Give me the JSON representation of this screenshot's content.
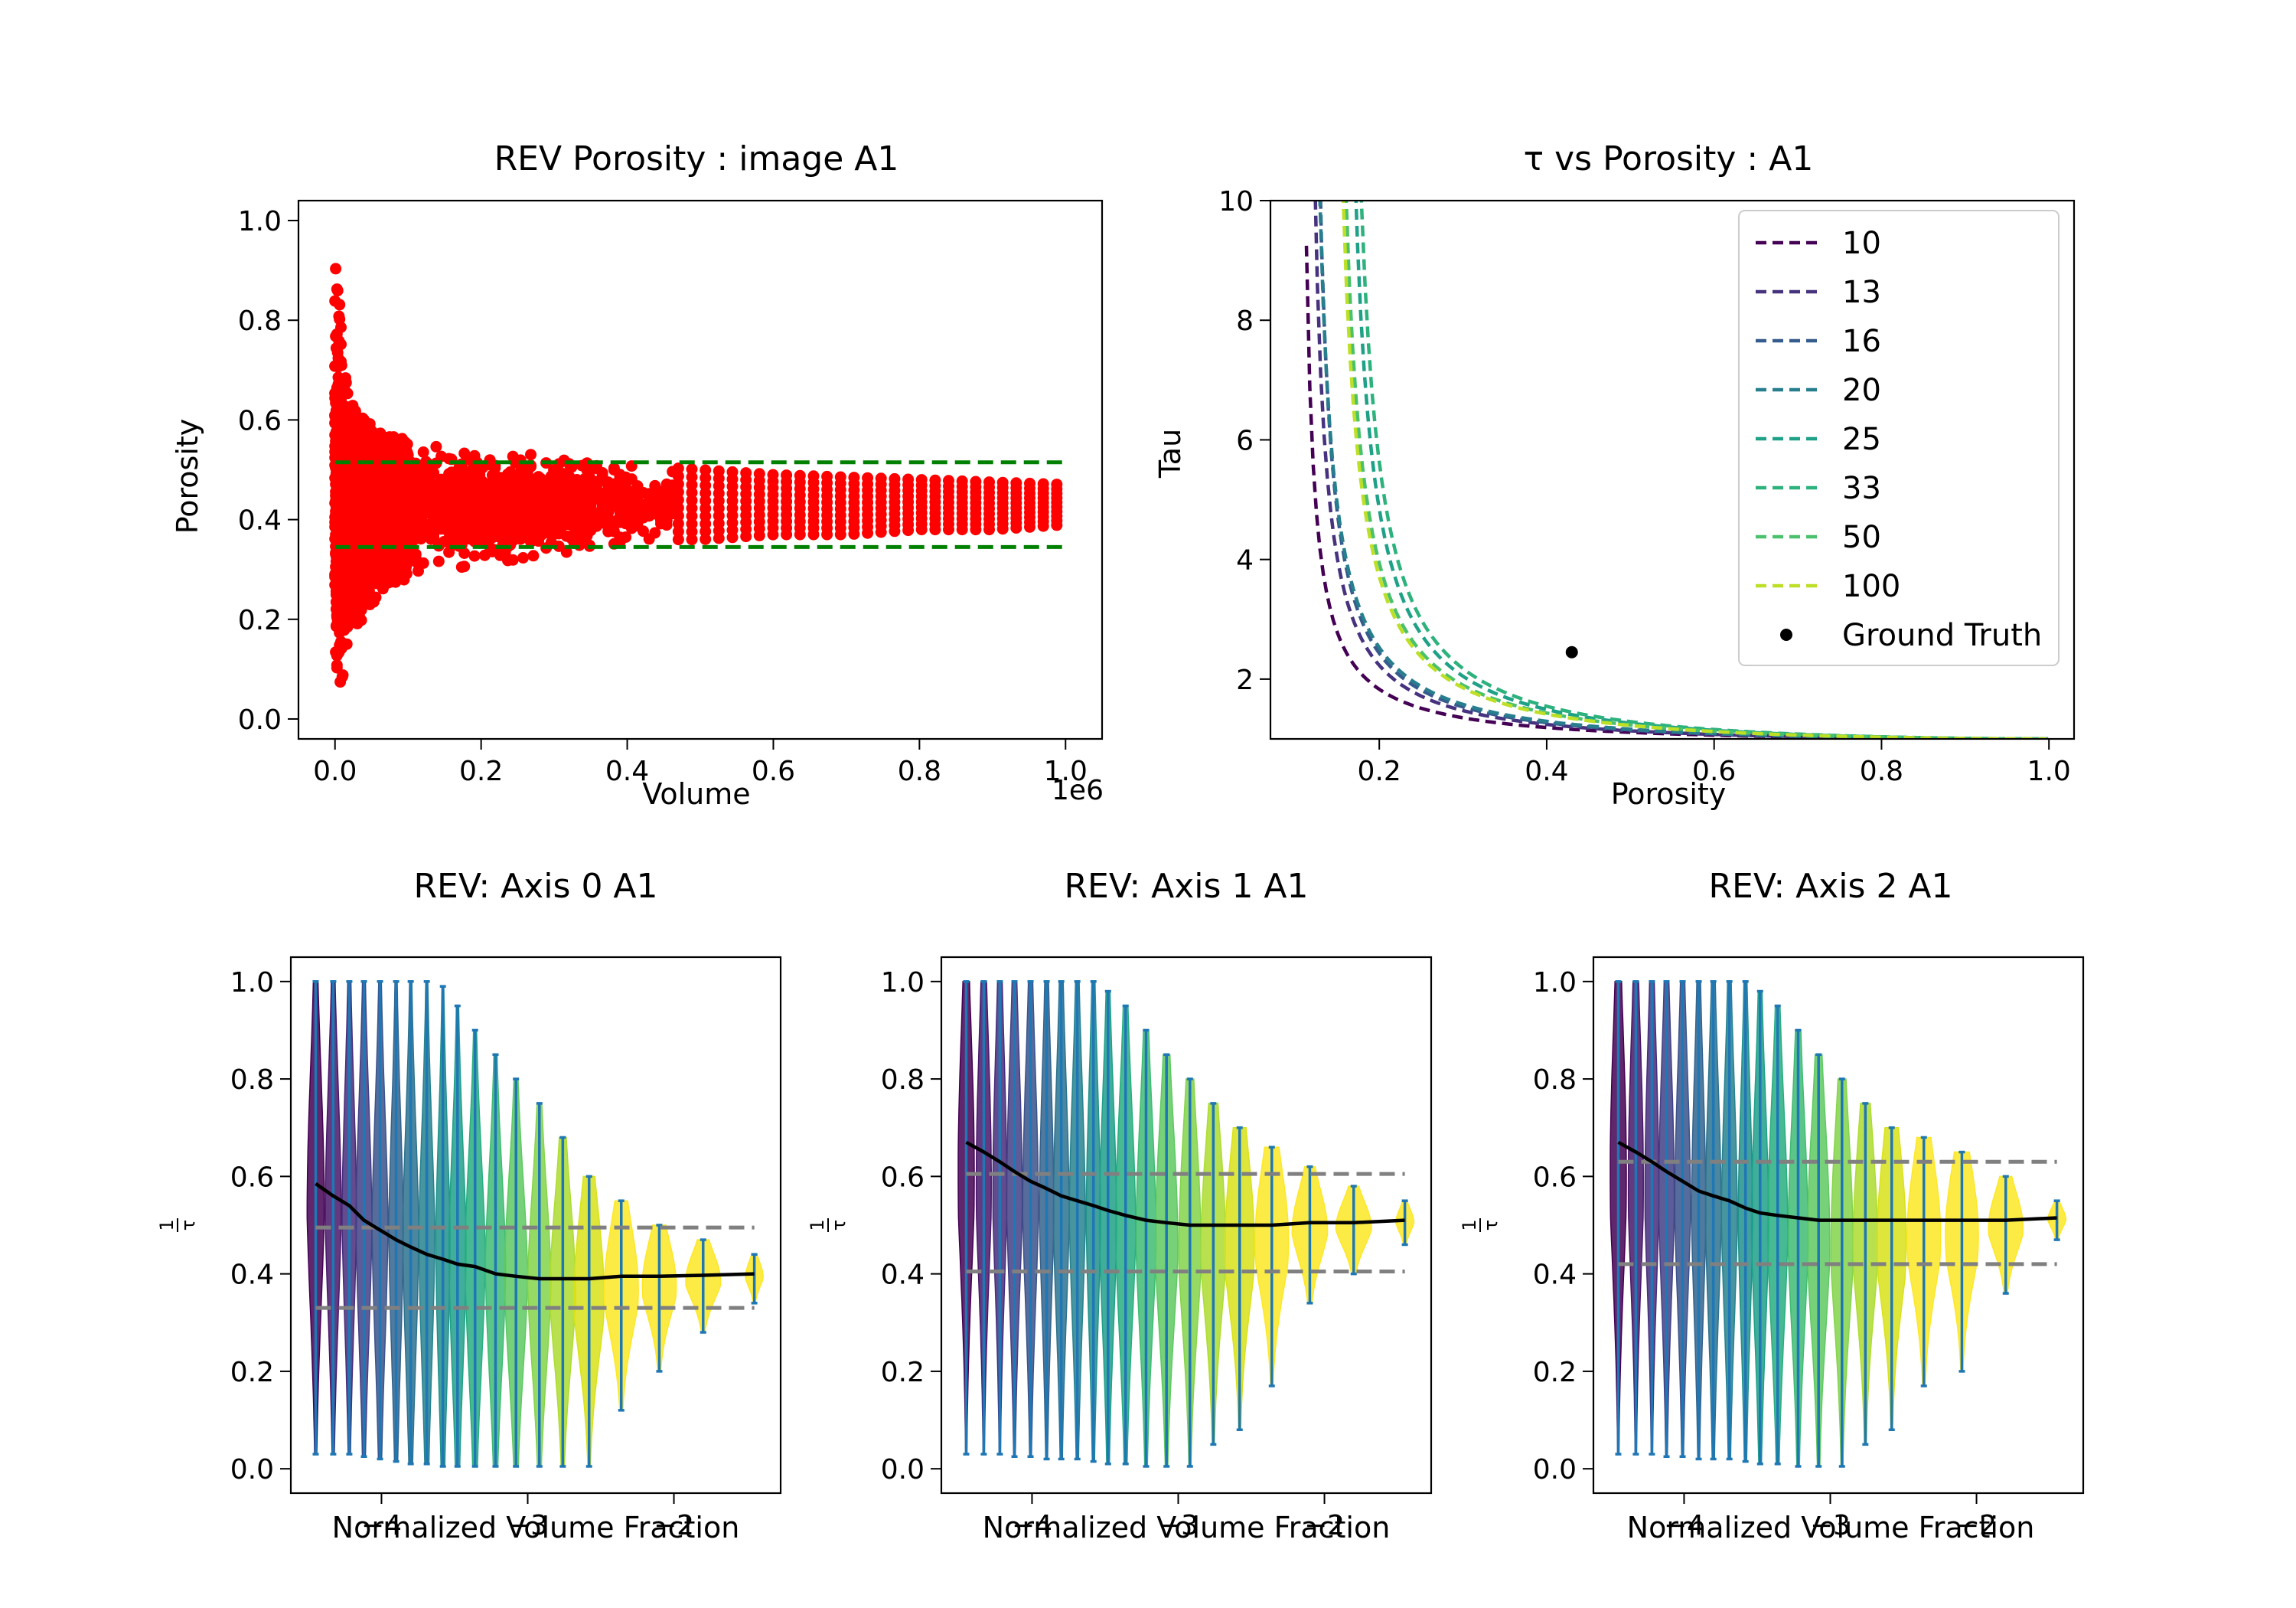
{
  "chart_data": [
    {
      "id": "rev-porosity",
      "type": "scatter",
      "title": "REV Porosity : image A1",
      "xlabel": "Volume",
      "ylabel": "Porosity",
      "x_offset_label": "1e6",
      "xlim": [
        -0.05,
        1.05
      ],
      "ylim": [
        -0.04,
        1.04
      ],
      "xticks": [
        0.0,
        0.2,
        0.4,
        0.6,
        0.8,
        1.0
      ],
      "xtick_labels": [
        "0.0",
        "0.2",
        "0.4",
        "0.6",
        "0.8",
        "1.0"
      ],
      "yticks": [
        0.0,
        0.2,
        0.4,
        0.6,
        0.8,
        1.0
      ],
      "ytick_labels": [
        "0.0",
        "0.2",
        "0.4",
        "0.6",
        "0.8",
        "1.0"
      ],
      "marker_color": "#ff0000",
      "hlines": [
        {
          "y": 0.515,
          "color": "#008000",
          "style": "dashed"
        },
        {
          "y": 0.345,
          "color": "#008000",
          "style": "dashed"
        }
      ],
      "spread": {
        "center": 0.43,
        "volumes": [
          0.0,
          0.003,
          0.006,
          0.01,
          0.015,
          0.02,
          0.03,
          0.04,
          0.05,
          0.07,
          0.1,
          0.15,
          0.2,
          0.25,
          0.3,
          0.35,
          0.4,
          0.45,
          0.5,
          0.6,
          0.7,
          0.8,
          0.9,
          1.0
        ],
        "low": [
          0.0,
          0.02,
          0.05,
          0.08,
          0.11,
          0.14,
          0.18,
          0.21,
          0.23,
          0.26,
          0.28,
          0.3,
          0.31,
          0.32,
          0.33,
          0.34,
          0.35,
          0.36,
          0.36,
          0.37,
          0.37,
          0.38,
          0.38,
          0.39
        ],
        "high": [
          0.98,
          0.9,
          0.84,
          0.78,
          0.72,
          0.68,
          0.62,
          0.6,
          0.59,
          0.57,
          0.56,
          0.55,
          0.54,
          0.535,
          0.53,
          0.52,
          0.51,
          0.505,
          0.5,
          0.49,
          0.485,
          0.48,
          0.475,
          0.47
        ]
      }
    },
    {
      "id": "tau-vs-porosity",
      "type": "line",
      "title": "τ vs Porosity : A1",
      "xlabel": "Porosity",
      "ylabel": "Tau",
      "xlim": [
        0.07,
        1.03
      ],
      "ylim": [
        1.0,
        10.0
      ],
      "xticks": [
        0.2,
        0.4,
        0.6,
        0.8,
        1.0
      ],
      "xtick_labels": [
        "0.2",
        "0.4",
        "0.6",
        "0.8",
        "1.0"
      ],
      "yticks": [
        2,
        4,
        6,
        8,
        10
      ],
      "ytick_labels": [
        "2",
        "4",
        "6",
        "8",
        "10"
      ],
      "legend_position": "upper-right",
      "series": [
        {
          "name": "10",
          "color": "#440154",
          "c": 1.8,
          "k": 0.9,
          "p0": 0.11
        },
        {
          "name": "13",
          "color": "#46327e",
          "c": 2.0,
          "k": 1.0,
          "p0": 0.115
        },
        {
          "name": "16",
          "color": "#365c8d",
          "c": 2.2,
          "k": 1.0,
          "p0": 0.12
        },
        {
          "name": "20",
          "color": "#277f8e",
          "c": 2.4,
          "k": 1.0,
          "p0": 0.118
        },
        {
          "name": "25",
          "color": "#1fa187",
          "c": 3.5,
          "k": 1.0,
          "p0": 0.155
        },
        {
          "name": "33",
          "color": "#2db27d",
          "c": 3.8,
          "k": 1.0,
          "p0": 0.16
        },
        {
          "name": "50",
          "color": "#4ac16d",
          "c": 3.2,
          "k": 1.0,
          "p0": 0.145
        },
        {
          "name": "100",
          "color": "#bddf26",
          "c": 3.1,
          "k": 1.0,
          "p0": 0.142
        }
      ],
      "ground_truth": {
        "name": "Ground Truth",
        "x": 0.43,
        "y": 2.45,
        "color": "#000000"
      }
    },
    {
      "id": "rev-axis-0",
      "type": "violin",
      "title": "REV: Axis 0 A1",
      "xlabel": "Normalized Volume Fraction",
      "ylabel": "1/τ",
      "xlim": [
        -4.62,
        -1.27
      ],
      "ylim": [
        -0.05,
        1.05
      ],
      "xticks": [
        -4,
        -3,
        -2
      ],
      "xtick_labels": [
        "−4",
        "−3",
        "−2"
      ],
      "yticks": [
        0.0,
        0.2,
        0.4,
        0.6,
        0.8,
        1.0
      ],
      "ytick_labels": [
        "0.0",
        "0.2",
        "0.4",
        "0.6",
        "0.8",
        "1.0"
      ],
      "x": [
        -4.45,
        -4.33,
        -4.22,
        -4.12,
        -4.01,
        -3.9,
        -3.8,
        -3.69,
        -3.58,
        -3.48,
        -3.36,
        -3.22,
        -3.08,
        -2.92,
        -2.76,
        -2.58,
        -2.36,
        -2.1,
        -1.8,
        -1.45
      ],
      "median": [
        0.585,
        0.56,
        0.54,
        0.51,
        0.49,
        0.47,
        0.455,
        0.44,
        0.43,
        0.42,
        0.415,
        0.4,
        0.395,
        0.39,
        0.39,
        0.39,
        0.395,
        0.395,
        0.397,
        0.4
      ],
      "max": [
        1.0,
        1.0,
        1.0,
        1.0,
        1.0,
        1.0,
        1.0,
        1.0,
        0.99,
        0.95,
        0.9,
        0.85,
        0.8,
        0.75,
        0.68,
        0.6,
        0.55,
        0.5,
        0.47,
        0.44
      ],
      "min": [
        0.03,
        0.03,
        0.03,
        0.025,
        0.02,
        0.015,
        0.01,
        0.01,
        0.005,
        0.005,
        0.005,
        0.005,
        0.005,
        0.005,
        0.005,
        0.005,
        0.12,
        0.2,
        0.28,
        0.34
      ],
      "hlines": [
        0.495,
        0.33
      ]
    },
    {
      "id": "rev-axis-1",
      "type": "violin",
      "title": "REV: Axis 1 A1",
      "xlabel": "Normalized Volume Fraction",
      "ylabel": "1/τ",
      "xlim": [
        -4.62,
        -1.27
      ],
      "ylim": [
        -0.05,
        1.05
      ],
      "xticks": [
        -4,
        -3,
        -2
      ],
      "xtick_labels": [
        "−4",
        "−3",
        "−2"
      ],
      "yticks": [
        0.0,
        0.2,
        0.4,
        0.6,
        0.8,
        1.0
      ],
      "ytick_labels": [
        "0.0",
        "0.2",
        "0.4",
        "0.6",
        "0.8",
        "1.0"
      ],
      "x": [
        -4.45,
        -4.33,
        -4.22,
        -4.12,
        -4.01,
        -3.9,
        -3.8,
        -3.69,
        -3.58,
        -3.48,
        -3.36,
        -3.22,
        -3.08,
        -2.92,
        -2.76,
        -2.58,
        -2.36,
        -2.1,
        -1.8,
        -1.45
      ],
      "median": [
        0.67,
        0.65,
        0.63,
        0.61,
        0.59,
        0.575,
        0.56,
        0.55,
        0.54,
        0.53,
        0.52,
        0.51,
        0.505,
        0.5,
        0.5,
        0.5,
        0.5,
        0.505,
        0.505,
        0.51
      ],
      "max": [
        1.0,
        1.0,
        1.0,
        1.0,
        1.0,
        1.0,
        1.0,
        1.0,
        1.0,
        0.98,
        0.95,
        0.9,
        0.85,
        0.8,
        0.75,
        0.7,
        0.66,
        0.62,
        0.58,
        0.55
      ],
      "min": [
        0.03,
        0.03,
        0.03,
        0.025,
        0.025,
        0.02,
        0.02,
        0.02,
        0.015,
        0.01,
        0.01,
        0.005,
        0.005,
        0.005,
        0.05,
        0.08,
        0.17,
        0.34,
        0.4,
        0.46
      ],
      "hlines": [
        0.605,
        0.405
      ]
    },
    {
      "id": "rev-axis-2",
      "type": "violin",
      "title": "REV: Axis 2 A1",
      "xlabel": "Normalized Volume Fraction",
      "ylabel": "1/τ",
      "xlim": [
        -4.62,
        -1.27
      ],
      "ylim": [
        -0.05,
        1.05
      ],
      "xticks": [
        -4,
        -3,
        -2
      ],
      "xtick_labels": [
        "−4",
        "−3",
        "−2"
      ],
      "yticks": [
        0.0,
        0.2,
        0.4,
        0.6,
        0.8,
        1.0
      ],
      "ytick_labels": [
        "0.0",
        "0.2",
        "0.4",
        "0.6",
        "0.8",
        "1.0"
      ],
      "x": [
        -4.45,
        -4.33,
        -4.22,
        -4.12,
        -4.01,
        -3.9,
        -3.8,
        -3.69,
        -3.58,
        -3.48,
        -3.36,
        -3.22,
        -3.08,
        -2.92,
        -2.76,
        -2.58,
        -2.36,
        -2.1,
        -1.8,
        -1.45
      ],
      "median": [
        0.67,
        0.65,
        0.63,
        0.61,
        0.59,
        0.57,
        0.56,
        0.55,
        0.535,
        0.525,
        0.52,
        0.515,
        0.51,
        0.51,
        0.51,
        0.51,
        0.51,
        0.51,
        0.51,
        0.515
      ],
      "max": [
        1.0,
        1.0,
        1.0,
        1.0,
        1.0,
        1.0,
        1.0,
        1.0,
        1.0,
        0.98,
        0.95,
        0.9,
        0.85,
        0.8,
        0.75,
        0.7,
        0.68,
        0.65,
        0.6,
        0.55
      ],
      "min": [
        0.03,
        0.03,
        0.03,
        0.025,
        0.025,
        0.02,
        0.02,
        0.02,
        0.015,
        0.01,
        0.01,
        0.005,
        0.005,
        0.005,
        0.05,
        0.08,
        0.17,
        0.2,
        0.36,
        0.47
      ],
      "hlines": [
        0.63,
        0.42
      ]
    }
  ]
}
